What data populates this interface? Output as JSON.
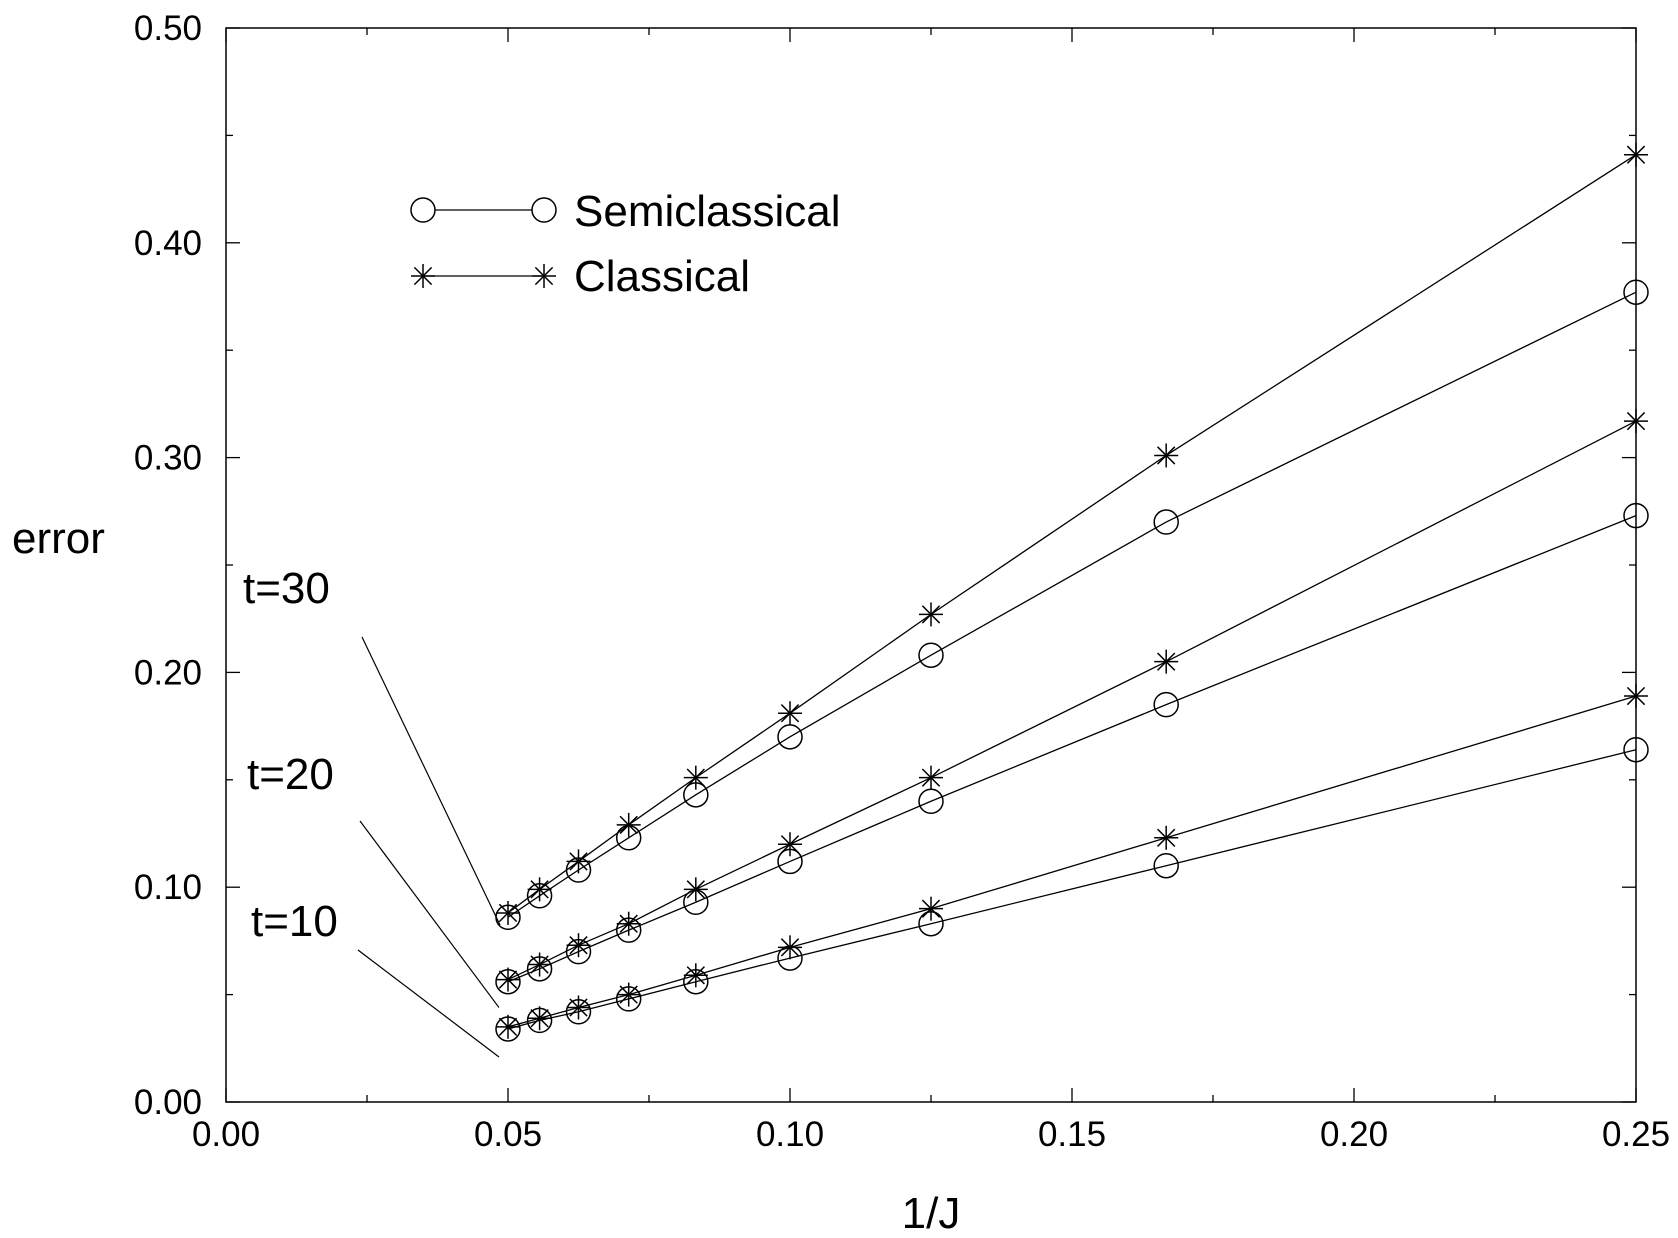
{
  "chart_data": {
    "type": "line",
    "xlabel": "1/J",
    "ylabel": "error",
    "xlim": [
      0,
      0.25
    ],
    "ylim": [
      0,
      0.5
    ],
    "xticks": [
      "0.00",
      "0.05",
      "0.10",
      "0.15",
      "0.20",
      "0.25"
    ],
    "yticks": [
      "0.00",
      "0.10",
      "0.20",
      "0.30",
      "0.40",
      "0.50"
    ],
    "grid": false,
    "legend_position": "top-left",
    "legend": [
      {
        "label": "Semiclassical",
        "marker": "circle"
      },
      {
        "label": "Classical",
        "marker": "star"
      }
    ],
    "x": [
      0.05,
      0.0556,
      0.0625,
      0.0714,
      0.0833,
      0.1,
      0.125,
      0.1667,
      0.25
    ],
    "series": [
      {
        "group": "t=30",
        "marker": "circle",
        "values": [
          0.086,
          0.096,
          0.108,
          0.123,
          0.143,
          0.17,
          0.208,
          0.27,
          0.377
        ]
      },
      {
        "group": "t=30",
        "marker": "star",
        "values": [
          0.088,
          0.099,
          0.112,
          0.129,
          0.151,
          0.181,
          0.227,
          0.301,
          0.441
        ]
      },
      {
        "group": "t=20",
        "marker": "circle",
        "values": [
          0.056,
          0.062,
          0.07,
          0.08,
          0.093,
          0.112,
          0.14,
          0.185,
          0.273
        ]
      },
      {
        "group": "t=20",
        "marker": "star",
        "values": [
          0.057,
          0.064,
          0.073,
          0.083,
          0.099,
          0.12,
          0.151,
          0.205,
          0.317
        ]
      },
      {
        "group": "t=10",
        "marker": "circle",
        "values": [
          0.034,
          0.038,
          0.042,
          0.048,
          0.056,
          0.067,
          0.083,
          0.11,
          0.164
        ]
      },
      {
        "group": "t=10",
        "marker": "star",
        "values": [
          0.035,
          0.039,
          0.044,
          0.05,
          0.059,
          0.072,
          0.09,
          0.123,
          0.189
        ]
      }
    ],
    "annotations": [
      {
        "text": "t=30",
        "points_to": {
          "x": 0.05,
          "y": 0.088
        }
      },
      {
        "text": "t=20",
        "points_to": {
          "x": 0.05,
          "y": 0.057
        }
      },
      {
        "text": "t=10",
        "points_to": {
          "x": 0.05,
          "y": 0.034
        }
      }
    ]
  }
}
